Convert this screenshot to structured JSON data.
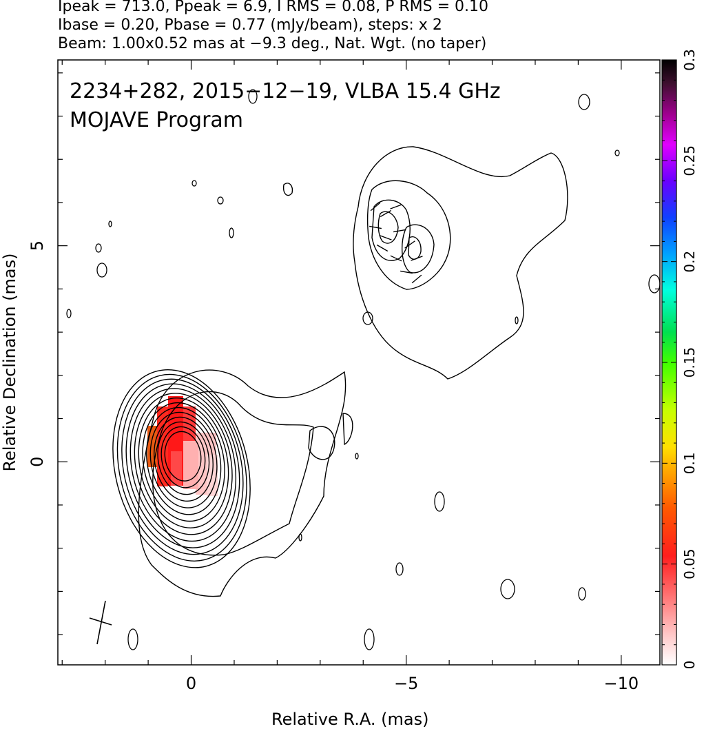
{
  "header": {
    "line1": "Ipeak = 713.0, Ppeak = 6.9, I RMS = 0.08, P RMS = 0.10",
    "line2": "Ibase = 0.20, Pbase = 0.77 (mJy/beam), steps: x 2",
    "line3": "Beam: 1.00x0.52 mas at −9.3 deg., Nat. Wgt. (no taper)"
  },
  "chart_data": {
    "type": "heatmap",
    "subtype": "radio contour map with polarization vectors",
    "title_line1": "2234+282, 2015−12−19, VLBA 15.4 GHz",
    "title_line2": "MOJAVE Program",
    "xlabel": "Relative R.A. (mas)",
    "ylabel": "Relative Declination (mas)",
    "xlim": [
      3.1,
      -10.9
    ],
    "ylim": [
      -4.7,
      9.3
    ],
    "x_ticks": [
      0,
      -5,
      -10
    ],
    "x_tick_labels": [
      "0",
      "−5",
      "−10"
    ],
    "y_ticks": [
      0,
      5
    ],
    "y_tick_labels": [
      "0",
      "5"
    ],
    "colorbar": {
      "range": [
        0,
        0.3
      ],
      "ticks": [
        0,
        0.05,
        0.1,
        0.15,
        0.2,
        0.25,
        0.3
      ],
      "tick_labels": [
        "0",
        "0.05",
        "0.1",
        "0.15",
        "0.2",
        "0.25",
        "0.3"
      ]
    },
    "core": {
      "ra": 0,
      "dec": 0
    },
    "jet_component": {
      "ra": -4.6,
      "dec": 5.4
    },
    "contour_levels_mJy_per_beam": [
      0.2,
      0.4,
      0.8,
      1.6,
      3.2,
      6.4,
      12.8,
      25.6,
      51.2,
      102.4,
      204.8,
      409.6
    ],
    "grid": false,
    "colors": {
      "contour": "#000000",
      "fractional_pol_low": "#ffd6d6",
      "fractional_pol_mid": "#ff2020",
      "fractional_pol_high": "#e04010"
    }
  }
}
